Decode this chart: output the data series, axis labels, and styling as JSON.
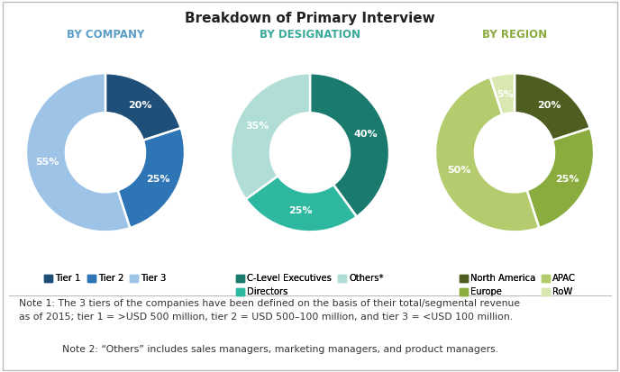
{
  "title": "Breakdown of Primary Interview",
  "title_fontsize": 11,
  "chart1_title": "BY COMPANY",
  "chart1_values": [
    20,
    25,
    55
  ],
  "chart1_labels": [
    "20%",
    "25%",
    "55%"
  ],
  "chart1_colors": [
    "#1f4e79",
    "#2e75b6",
    "#9dc3e6"
  ],
  "chart1_legend": [
    "Tier 1",
    "Tier 2",
    "Tier 3"
  ],
  "chart1_startangle": 90,
  "chart2_title": "BY DESIGNATION",
  "chart2_values": [
    40,
    25,
    35
  ],
  "chart2_labels": [
    "40%",
    "25%",
    "35%"
  ],
  "chart2_colors": [
    "#1a7a6e",
    "#2eb8a0",
    "#b0ddd6"
  ],
  "chart2_legend": [
    "C-Level Executives",
    "Directors",
    "Others*"
  ],
  "chart2_startangle": 90,
  "chart3_title": "BY REGION",
  "chart3_values": [
    20,
    25,
    50,
    5
  ],
  "chart3_labels": [
    "20%",
    "25%",
    "50%",
    "5%"
  ],
  "chart3_colors": [
    "#4d5e20",
    "#8aac3e",
    "#b5cc6e",
    "#d9e8b0"
  ],
  "chart3_legend": [
    "North America",
    "Europe",
    "APAC",
    "RoW"
  ],
  "chart3_startangle": 90,
  "note1": "Note 1: The 3 tiers of the companies have been defined on the basis of their total/segmental revenue\nas of 2015; tier 1 = >USD 500 million, tier 2 = USD 500–100 million, and tier 3 = <USD 100 million.",
  "note2": "Note 2: “Others” includes sales managers, marketing managers, and product managers.",
  "note_fontsize": 7.8,
  "chart_title_color": "#5a9ec9",
  "chart_title_color2": "#3aaa9a",
  "chart_title_color3": "#8aac3e",
  "background_color": "#ffffff",
  "border_color": "#bbbbbb"
}
